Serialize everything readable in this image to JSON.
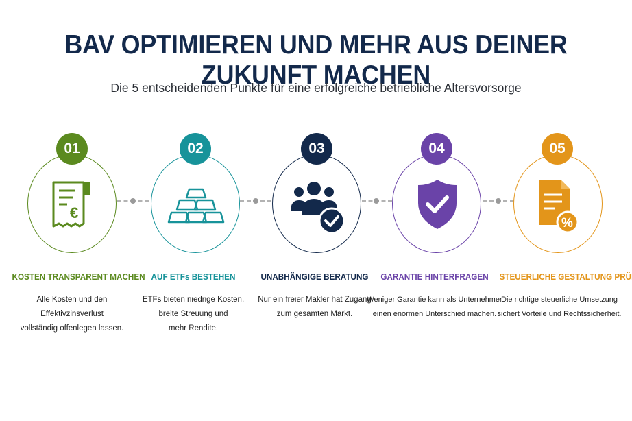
{
  "title": "BAV OPTIMIEREN UND MEHR AUS DEINER ZUKUNFT MACHEN",
  "subtitle": "Die 5 entscheidenden Punkte für eine erfolgreiche betriebliche Altersvorsorge",
  "colors": {
    "title": "#13294b",
    "step1": "#5b8a1f",
    "step2": "#17939a",
    "step3": "#13294b",
    "step4": "#6a43a8",
    "step5": "#e3951a"
  },
  "steps": [
    {
      "number": "01",
      "icon": "receipt-euro-icon",
      "heading": "KOSTEN TRANSPARENT MACHEN",
      "lines": [
        "Alle Kosten und den",
        "Effektivzinsverlust",
        "vollständig offenlegen lassen."
      ]
    },
    {
      "number": "02",
      "icon": "gold-bars-icon",
      "heading": "AUF ETFs BESTEHEN",
      "lines": [
        "ETFs bieten niedrige Kosten,",
        "breite Streuung und",
        "mehr Rendite."
      ]
    },
    {
      "number": "03",
      "icon": "group-check-icon",
      "heading": "UNABHÄNGIGE BERATUNG",
      "lines": [
        "Nur ein freier Makler hat Zugang",
        "zum gesamten Markt."
      ]
    },
    {
      "number": "04",
      "icon": "shield-check-icon",
      "heading": "GARANTIE HINTERFRAGEN",
      "lines": [
        "Weniger Garantie kann als Unternehmer",
        "einen enormen Unterschied machen."
      ]
    },
    {
      "number": "05",
      "icon": "document-percent-icon",
      "heading": "STEUERLICHE GESTALTUNG PRÜFEN",
      "lines": [
        "Die richtige steuerliche Umsetzung",
        "sichert Vorteile und Rechtssicherheit."
      ]
    }
  ]
}
